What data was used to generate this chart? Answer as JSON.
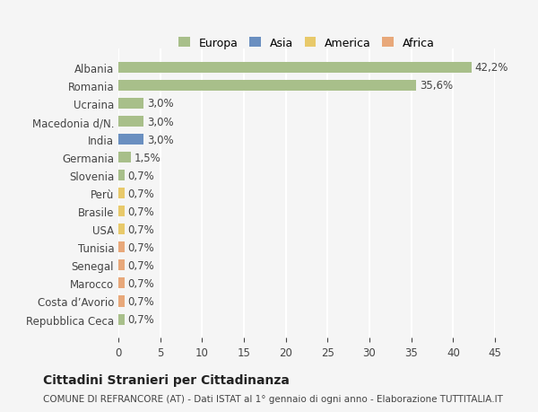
{
  "countries": [
    "Albania",
    "Romania",
    "Ucraina",
    "Macedonia d/N.",
    "India",
    "Germania",
    "Slovenia",
    "Perù",
    "Brasile",
    "USA",
    "Tunisia",
    "Senegal",
    "Marocco",
    "Costa d’Avorio",
    "Repubblica Ceca"
  ],
  "values": [
    42.2,
    35.6,
    3.0,
    3.0,
    3.0,
    1.5,
    0.7,
    0.7,
    0.7,
    0.7,
    0.7,
    0.7,
    0.7,
    0.7,
    0.7
  ],
  "labels": [
    "42,2%",
    "35,6%",
    "3,0%",
    "3,0%",
    "3,0%",
    "1,5%",
    "0,7%",
    "0,7%",
    "0,7%",
    "0,7%",
    "0,7%",
    "0,7%",
    "0,7%",
    "0,7%",
    "0,7%"
  ],
  "colors": [
    "#a8bf8a",
    "#a8bf8a",
    "#a8bf8a",
    "#a8bf8a",
    "#6a8fc0",
    "#a8bf8a",
    "#a8bf8a",
    "#e8c96a",
    "#e8c96a",
    "#e8c96a",
    "#e8a87a",
    "#e8a87a",
    "#e8a87a",
    "#e8a87a",
    "#a8bf8a"
  ],
  "legend_labels": [
    "Europa",
    "Asia",
    "America",
    "Africa"
  ],
  "legend_colors": [
    "#a8bf8a",
    "#6a8fc0",
    "#e8c96a",
    "#e8a87a"
  ],
  "title": "Cittadini Stranieri per Cittadinanza",
  "subtitle": "COMUNE DI REFRANCORE (AT) - Dati ISTAT al 1° gennaio di ogni anno - Elaborazione TUTTITALIA.IT",
  "xlim": [
    0,
    45
  ],
  "xticks": [
    0,
    5,
    10,
    15,
    20,
    25,
    30,
    35,
    40,
    45
  ],
  "bg_color": "#f5f5f5",
  "grid_color": "#ffffff"
}
